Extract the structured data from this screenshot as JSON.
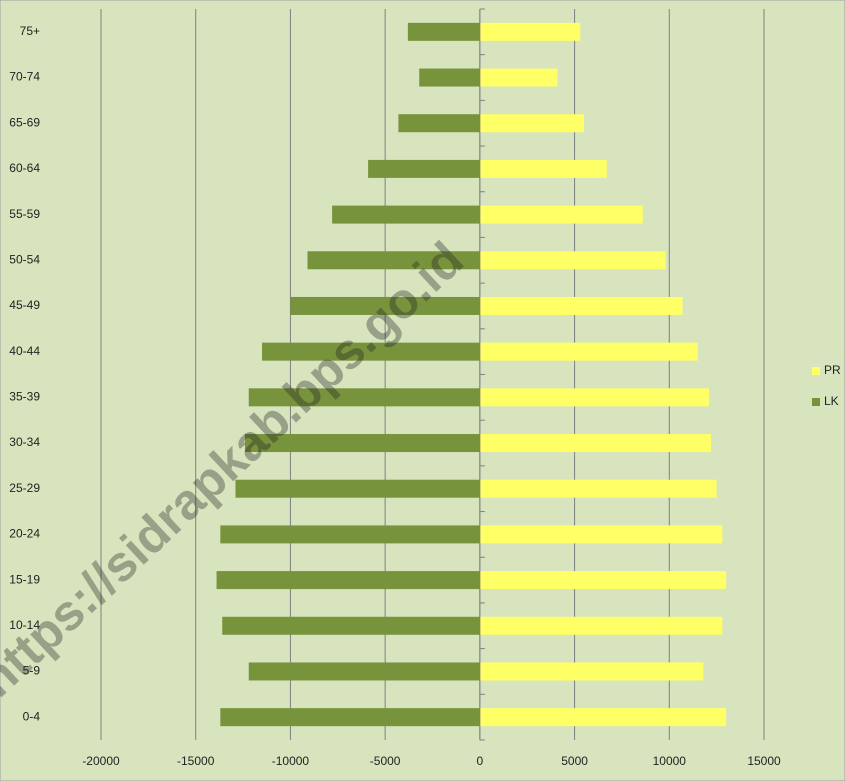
{
  "chart_data": {
    "type": "pyramid",
    "categories": [
      "0-4",
      "5-9",
      "10-14",
      "15-19",
      "20-24",
      "25-29",
      "30-34",
      "35-39",
      "40-44",
      "45-49",
      "50-54",
      "55-59",
      "60-64",
      "65-69",
      "70-74",
      "75+"
    ],
    "series": [
      {
        "name": "PR",
        "color": "#ffff66",
        "values": [
          13000,
          11800,
          12800,
          13000,
          12800,
          12500,
          12200,
          12100,
          11500,
          10700,
          9800,
          8600,
          6700,
          5500,
          4100,
          5300
        ]
      },
      {
        "name": "LK",
        "color": "#77933c",
        "values": [
          -13700,
          -12200,
          -13600,
          -13900,
          -13700,
          -12900,
          -12400,
          -12200,
          -11500,
          -10000,
          -9100,
          -7800,
          -5900,
          -4300,
          -3200,
          -3800
        ]
      }
    ],
    "xlim": [
      -20000,
      15000
    ],
    "xticks": [
      -20000,
      -15000,
      -10000,
      -5000,
      0,
      5000,
      10000,
      15000
    ],
    "grid": true,
    "legend": "right",
    "watermark": "https://sidrapkab.bps.go.id"
  }
}
